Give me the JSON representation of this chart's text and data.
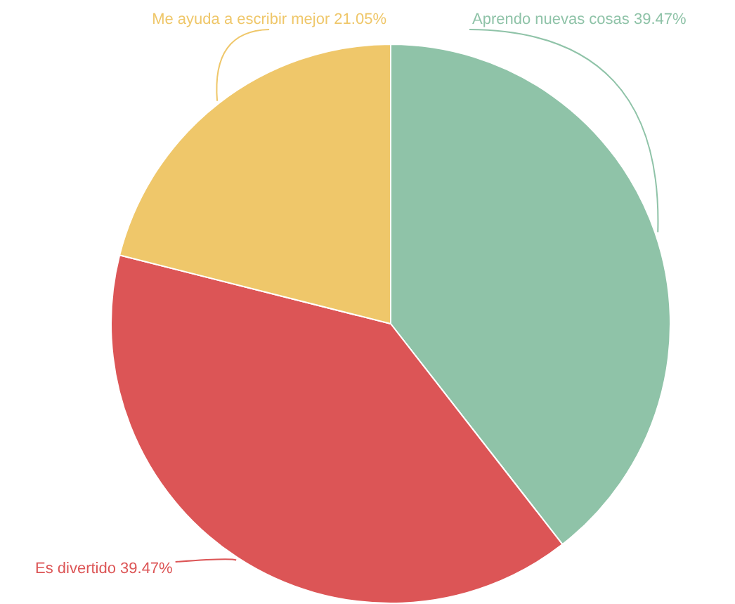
{
  "chart_data": {
    "type": "pie",
    "categories": [
      "Aprendo nuevas cosas",
      "Es divertido",
      "Me ayuda a escribir mejor"
    ],
    "values": [
      39.47,
      39.47,
      21.05
    ],
    "colors": [
      "#8fc3a8",
      "#dc5556",
      "#efc76a"
    ],
    "value_labels": [
      "39.47%",
      "39.47%",
      "21.05%"
    ],
    "legend": false
  }
}
